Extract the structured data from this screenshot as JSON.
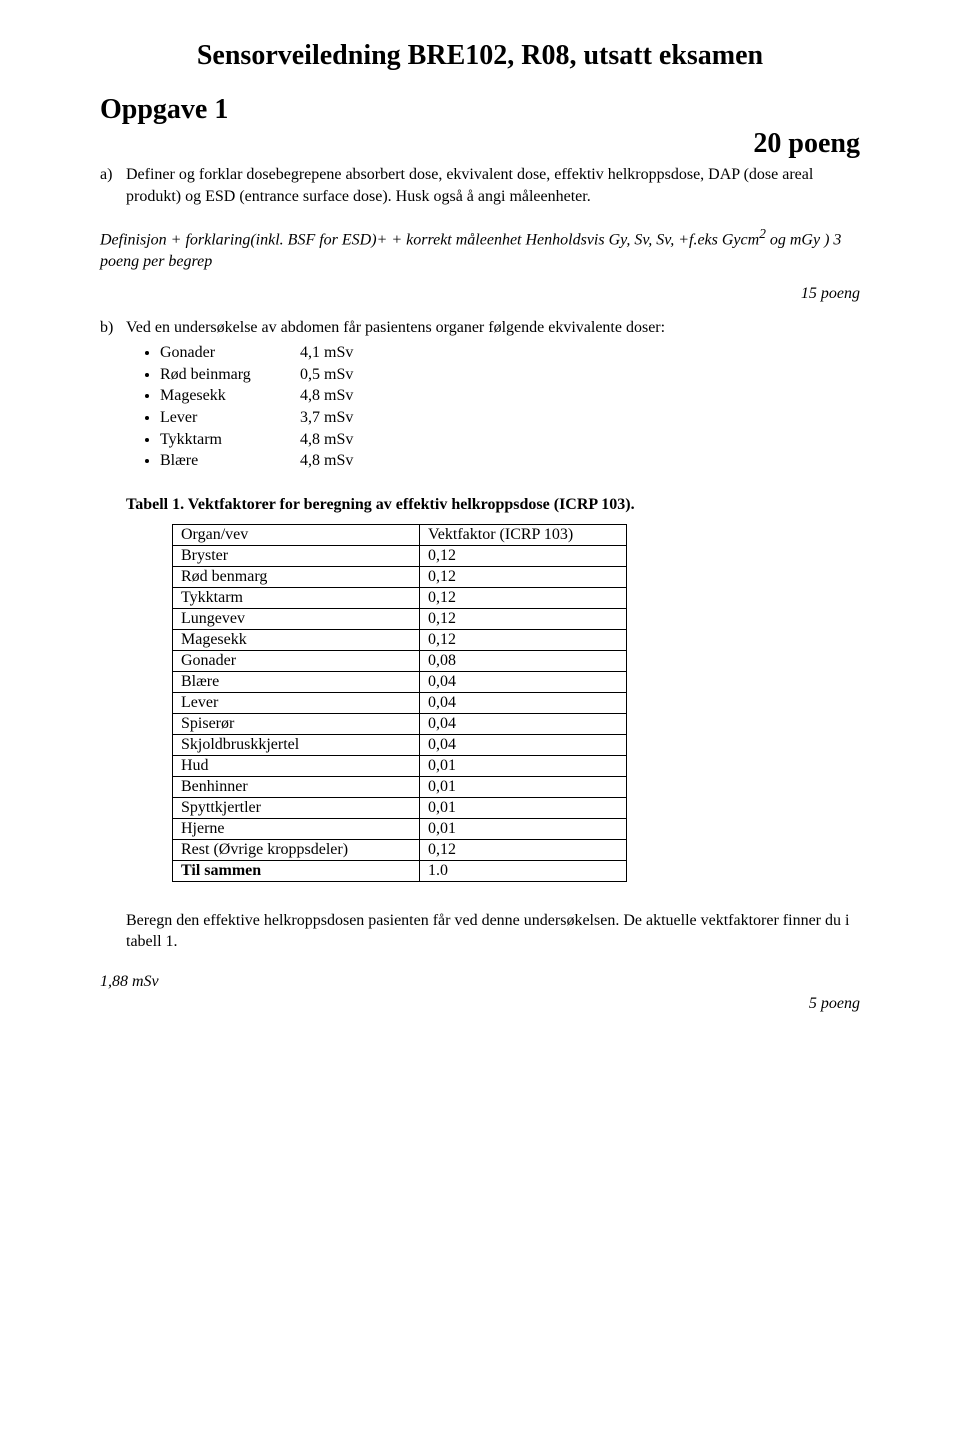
{
  "title": "Sensorveiledning BRE102, R08, utsatt eksamen",
  "section": {
    "heading": "Oppgave 1",
    "points": "20 poeng"
  },
  "partA": {
    "marker": "a)",
    "text": "Definer og forklar dosebegrepene absorbert dose, ekvivalent dose, effektiv helkroppsdose, DAP (dose areal produkt) og ESD (entrance surface dose). Husk også å angi måleenheter.",
    "note_line1": "Definisjon + forklaring(inkl. BSF for ESD)+ + korrekt måleenhet Henholdsvis Gy, Sv, Sv, +f.eks Gycm",
    "note_sup": "2",
    "note_line1_tail": " og mGy ) 3 poeng per begrep",
    "subpoints": "15 poeng"
  },
  "partB": {
    "marker": "b)",
    "intro": "Ved en undersøkelse av abdomen får pasientens organer følgende ekvivalente doser:",
    "doses": [
      {
        "label": "Gonader",
        "value": "4,1 mSv"
      },
      {
        "label": "Rød beinmarg",
        "value": "0,5 mSv"
      },
      {
        "label": "Magesekk",
        "value": "4,8 mSv"
      },
      {
        "label": "Lever",
        "value": "3,7 mSv"
      },
      {
        "label": "Tykktarm",
        "value": "4,8 mSv"
      },
      {
        "label": "Blære",
        "value": "4,8 mSv"
      }
    ]
  },
  "table": {
    "caption": "Tabell 1. Vektfaktorer for beregning av effektiv helkroppsdose (ICRP 103).",
    "header_organ": "Organ/vev",
    "header_val": "Vektfaktor (ICRP 103)",
    "rows": [
      {
        "organ": "Bryster",
        "val": "0,12"
      },
      {
        "organ": "Rød benmarg",
        "val": "0,12"
      },
      {
        "organ": "Tykktarm",
        "val": "0,12"
      },
      {
        "organ": "Lungevev",
        "val": "0,12"
      },
      {
        "organ": "Magesekk",
        "val": "0,12"
      },
      {
        "organ": "Gonader",
        "val": "0,08"
      },
      {
        "organ": "Blære",
        "val": "0,04"
      },
      {
        "organ": "Lever",
        "val": "0,04"
      },
      {
        "organ": "Spiserør",
        "val": "0,04"
      },
      {
        "organ": "Skjoldbruskkjertel",
        "val": "0,04"
      },
      {
        "organ": "Hud",
        "val": "0,01"
      },
      {
        "organ": "Benhinner",
        "val": "0,01"
      },
      {
        "organ": "Spyttkjertler",
        "val": "0,01"
      },
      {
        "organ": "Hjerne",
        "val": "0,01"
      },
      {
        "organ": "Rest (Øvrige kroppsdeler)",
        "val": "0,12"
      }
    ],
    "total_label": "Til sammen",
    "total_val": "1.0"
  },
  "afterTable": "Beregn den effektive helkroppsdosen pasienten får ved denne undersøkelsen. De aktuelle vektfaktorer finner du i tabell 1.",
  "answer": "1,88 mSv",
  "finalPoints": "5 poeng"
}
